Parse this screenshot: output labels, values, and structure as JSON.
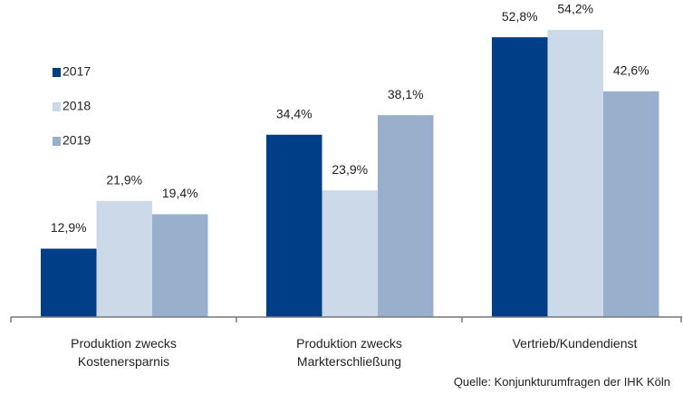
{
  "chart_data": {
    "type": "bar",
    "categories": [
      "Produktion zwecks\nKostenersparnis",
      "Produktion zwecks\nMarkterschließung",
      "Vertrieb/Kundendienst"
    ],
    "series": [
      {
        "name": "2017",
        "color": "#003f87",
        "values": [
          12.9,
          34.4,
          52.8
        ],
        "value_labels": [
          "12,9%",
          "34,4%",
          "52,8%"
        ]
      },
      {
        "name": "2018",
        "color": "#ccd9e8",
        "values": [
          21.9,
          23.9,
          54.2
        ],
        "value_labels": [
          "21,9%",
          "23,9%",
          "54,2%"
        ]
      },
      {
        "name": "2019",
        "color": "#98b0cc",
        "values": [
          19.4,
          38.1,
          42.6
        ],
        "value_labels": [
          "19,4%",
          "38,1%",
          "42,6%"
        ]
      }
    ],
    "source": "Quelle: Konjunkturumfragen der IHK Köln"
  }
}
